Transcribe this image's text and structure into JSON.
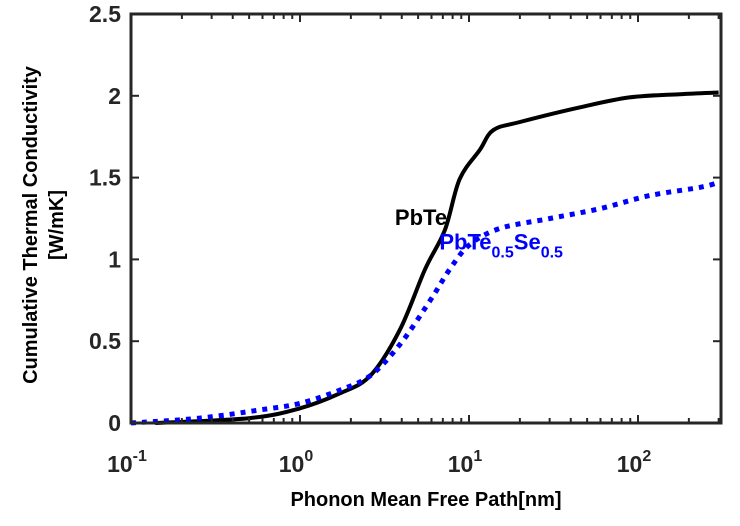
{
  "chart_data": {
    "type": "line",
    "title": "",
    "xlabel": "Phonon Mean Free Path[nm]",
    "ylabel_lines": [
      "Cumulative Thermal Conductivity",
      "[W/mK]"
    ],
    "xscale": "log",
    "xlim": [
      0.1,
      300
    ],
    "ylim": [
      0,
      2.5
    ],
    "grid": false,
    "x_ticks": [
      {
        "value": 0.1,
        "base": "10",
        "exp": "-1"
      },
      {
        "value": 1,
        "base": "10",
        "exp": "0"
      },
      {
        "value": 10,
        "base": "10",
        "exp": "1"
      },
      {
        "value": 100,
        "base": "10",
        "exp": "2"
      }
    ],
    "y_ticks": [
      {
        "value": 0,
        "label": "0"
      },
      {
        "value": 0.5,
        "label": "0.5"
      },
      {
        "value": 1,
        "label": "1"
      },
      {
        "value": 1.5,
        "label": "1.5"
      },
      {
        "value": 2,
        "label": "2"
      },
      {
        "value": 2.5,
        "label": "2.5"
      }
    ],
    "series": [
      {
        "name": "PbTe",
        "color": "#000000",
        "style": "solid",
        "x": [
          0.139,
          0.506,
          1.0,
          1.71,
          2.61,
          3.9,
          5.5,
          7.2,
          8.8,
          11.6,
          13.9,
          20,
          45.5,
          89,
          177,
          300
        ],
        "y": [
          0.0,
          0.03,
          0.09,
          0.18,
          0.29,
          0.57,
          0.94,
          1.18,
          1.49,
          1.67,
          1.79,
          1.84,
          1.93,
          1.99,
          2.01,
          2.02
        ]
      },
      {
        "name": "PbTe0.5Se0.5",
        "color": "#0000ff",
        "style": "dotted",
        "x": [
          0.1,
          0.256,
          0.58,
          1.0,
          1.71,
          2.61,
          3.9,
          5.9,
          7.7,
          10.1,
          15.3,
          30.1,
          59.4,
          117,
          232,
          300
        ],
        "y": [
          0.0,
          0.03,
          0.08,
          0.12,
          0.2,
          0.29,
          0.48,
          0.75,
          0.94,
          1.09,
          1.19,
          1.25,
          1.31,
          1.39,
          1.44,
          1.47
        ]
      }
    ],
    "annotations": [
      {
        "name": "pbte-label",
        "text": "PbTe",
        "color": "#000000",
        "x": 5.2,
        "y": 1.21
      },
      {
        "name": "pbtese-label",
        "parts": [
          {
            "text": "PbTe",
            "sub": false
          },
          {
            "text": "0.5",
            "sub": true
          },
          {
            "text": "Se",
            "sub": false
          },
          {
            "text": "0.5",
            "sub": true
          }
        ],
        "color": "#0000ff",
        "x": 15.5,
        "y": 1.06
      }
    ],
    "legend": "none"
  }
}
